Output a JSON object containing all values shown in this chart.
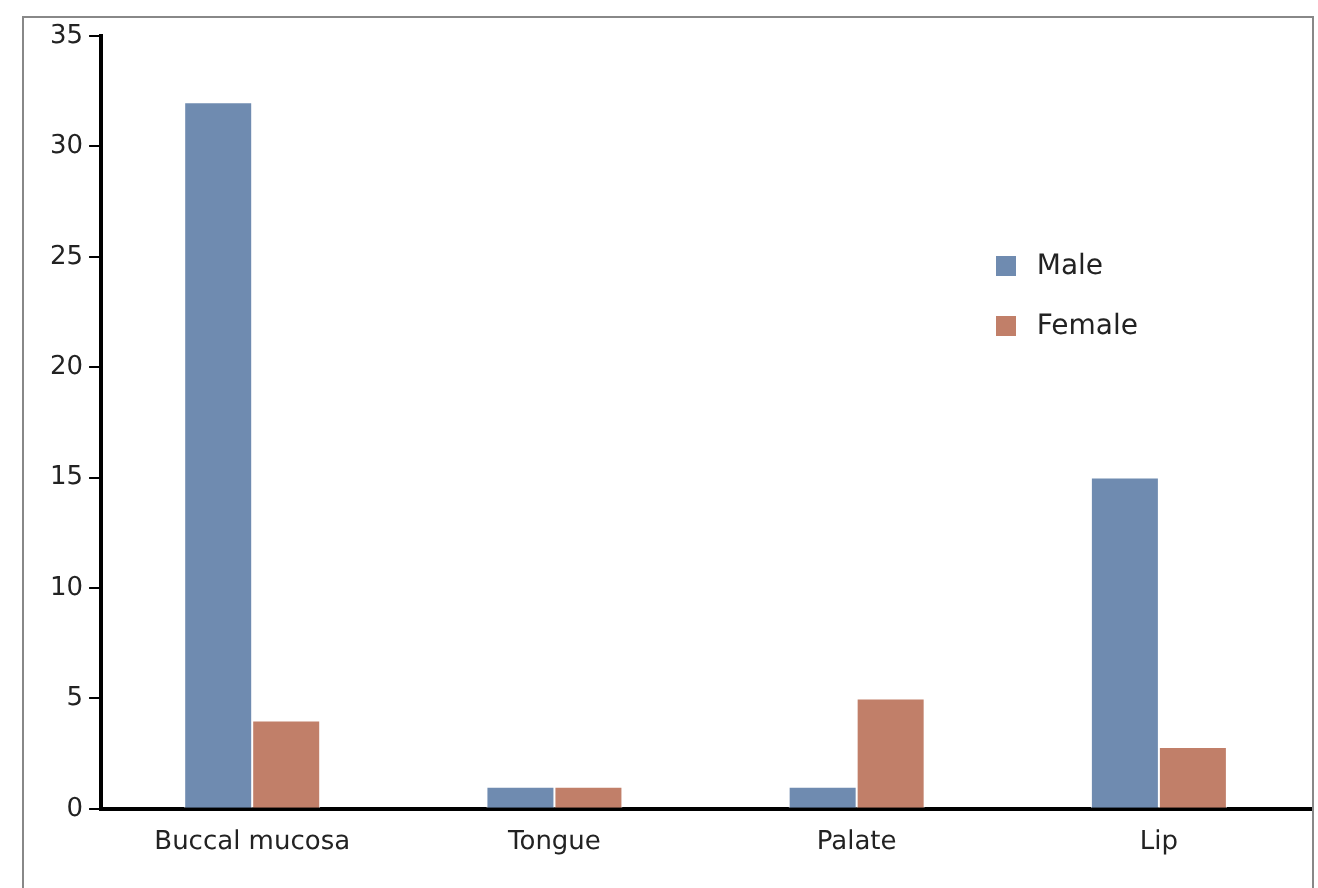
{
  "chart_data": {
    "type": "bar",
    "categories": [
      "Buccal mucosa",
      "Tongue",
      "Palate",
      "Lip"
    ],
    "series": [
      {
        "name": "Male",
        "color": "#6f8bb0",
        "values": [
          32,
          1,
          1,
          15
        ]
      },
      {
        "name": "Female",
        "color": "#c17f69",
        "values": [
          4,
          1,
          5,
          2.8
        ]
      }
    ],
    "ylim": [
      0,
      35
    ],
    "yticks": [
      0,
      5,
      10,
      15,
      20,
      25,
      30,
      35
    ],
    "grid": false,
    "legend": "right"
  }
}
